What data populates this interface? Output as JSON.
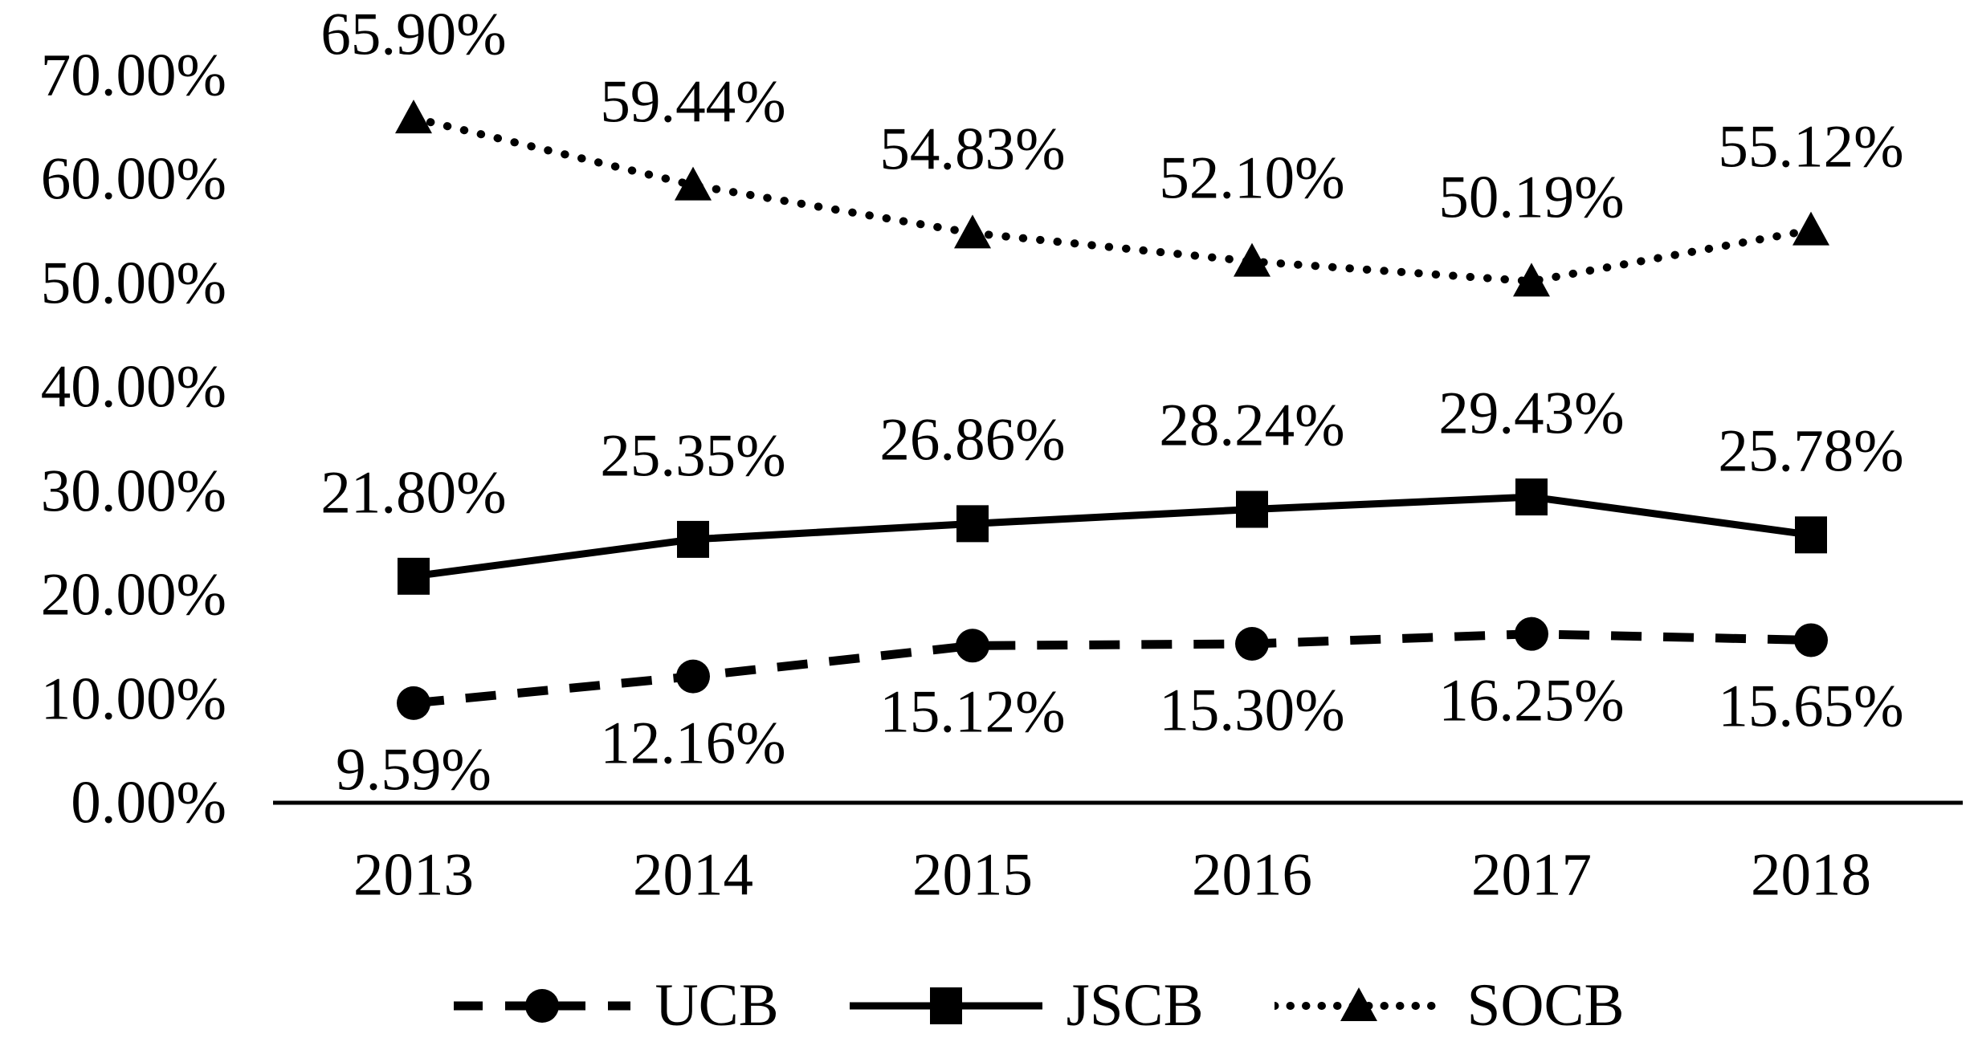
{
  "chart_data": {
    "type": "line",
    "title": "",
    "xlabel": "",
    "ylabel": "",
    "grid": false,
    "background_color": "#ffffff",
    "series_color": "#000000",
    "categories": [
      "2013",
      "2014",
      "2015",
      "2016",
      "2017",
      "2018"
    ],
    "series": [
      {
        "name": "UCB",
        "values": [
          9.59,
          12.16,
          15.12,
          15.3,
          16.25,
          15.65
        ],
        "labels": [
          "9.59%",
          "12.16%",
          "15.12%",
          "15.30%",
          "16.25%",
          "15.65%"
        ],
        "marker": "circle",
        "line_style": "dashed",
        "label_position": "below"
      },
      {
        "name": "JSCB",
        "values": [
          21.8,
          25.35,
          26.86,
          28.24,
          29.43,
          25.78
        ],
        "labels": [
          "21.80%",
          "25.35%",
          "26.86%",
          "28.24%",
          "29.43%",
          "25.78%"
        ],
        "marker": "square",
        "line_style": "solid",
        "label_position": "above"
      },
      {
        "name": "SOCB",
        "values": [
          65.9,
          59.44,
          54.83,
          52.1,
          50.19,
          55.12
        ],
        "labels": [
          "65.90%",
          "59.44%",
          "54.83%",
          "52.10%",
          "50.19%",
          "55.12%"
        ],
        "marker": "triangle",
        "line_style": "dotted",
        "label_position": "above"
      }
    ],
    "y_axis": {
      "min": 0,
      "max": 70,
      "step": 10,
      "ticks": [
        "0.00%",
        "10.00%",
        "20.00%",
        "30.00%",
        "40.00%",
        "50.00%",
        "60.00%",
        "70.00%"
      ]
    },
    "legend": {
      "position": "bottom",
      "entries": [
        "UCB",
        "JSCB",
        "SOCB"
      ]
    }
  }
}
